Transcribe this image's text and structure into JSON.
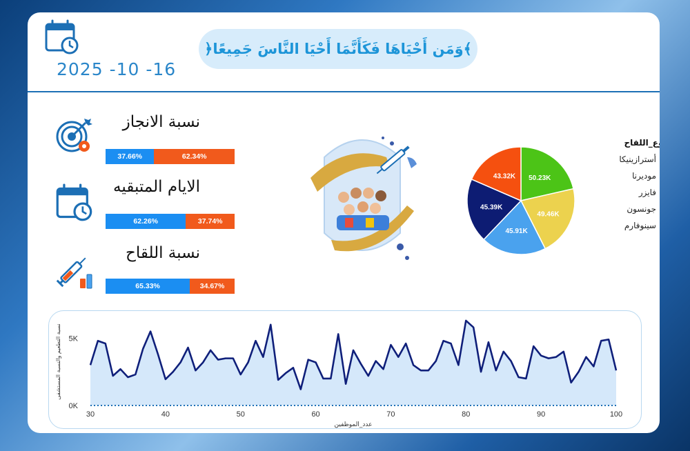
{
  "header": {
    "verse": "﴿وَمَن أَحْيَاهَا فَكَأَنَّمَا أَحْيَا النَّاسَ جَمِيعًا﴾",
    "date": "2025 -10 -16",
    "calendar_icon": "calendar-clock-icon"
  },
  "kpis": [
    {
      "title": "نسبة الانجاز",
      "icon": "target-gear-icon",
      "left_label": "37.66%",
      "right_label": "62.34%",
      "left_value": 37.66,
      "right_value": 62.34
    },
    {
      "title": "الايام المتبقيه",
      "icon": "calendar-clock-icon",
      "left_label": "62.26%",
      "right_label": "37.74%",
      "left_value": 62.26,
      "right_value": 37.74
    },
    {
      "title": "نسبة اللقاح",
      "icon": "syringe-vial-icon",
      "left_label": "65.33%",
      "right_label": "34.67%",
      "left_value": 65.33,
      "right_value": 34.67
    }
  ],
  "colors": {
    "bar_blue": "#1b8ef2",
    "bar_orange": "#f15a1c",
    "line": "#0f1f7a",
    "area": "#d5e8fa",
    "accent": "#1c6fb5"
  },
  "hero_icon": "vaccination-people-icon",
  "chart_data": [
    {
      "type": "pie",
      "title": "",
      "legend_title": "نوع_اللقاح",
      "legend_position": "right",
      "slices": [
        {
          "name": "أسترازينيكا",
          "value": 50.23,
          "label": "50.23K",
          "color": "#4cc417"
        },
        {
          "name": "موديرنا",
          "value": 49.46,
          "label": "49.46K",
          "color": "#ecd24e"
        },
        {
          "name": "فايزر",
          "value": 45.91,
          "label": "45.91K",
          "color": "#4aa2ee"
        },
        {
          "name": "جونسون",
          "value": 45.39,
          "label": "45.39K",
          "color": "#0d1c73"
        },
        {
          "name": "سينوفارم",
          "value": 43.32,
          "label": "43.32K",
          "color": "#f5500f"
        }
      ]
    },
    {
      "type": "area",
      "xlabel": "عدد_الموظفين",
      "ylabel": "نسبة التطعيم والنسبة المستشفى",
      "xlim": [
        30,
        100
      ],
      "ylim": [
        0,
        6500
      ],
      "x_ticks": [
        30,
        40,
        50,
        60,
        70,
        80,
        90,
        100
      ],
      "y_ticks": [
        {
          "value": 0,
          "label": "0K"
        },
        {
          "value": 5000,
          "label": "5K"
        }
      ],
      "grid": false,
      "series": [
        {
          "x": [
            30,
            31,
            32,
            33,
            34,
            35,
            36,
            37,
            38,
            39,
            40,
            41,
            42,
            43,
            44,
            45,
            46,
            47,
            48,
            49,
            50,
            51,
            52,
            53,
            54,
            55,
            56,
            57,
            58,
            59,
            60,
            61,
            62,
            63,
            64,
            65,
            66,
            67,
            68,
            69,
            70,
            71,
            72,
            73,
            74,
            75,
            76,
            77,
            78,
            79,
            80,
            81,
            82,
            83,
            84,
            85,
            86,
            87,
            88,
            89,
            90,
            91,
            92,
            93,
            94,
            95,
            96,
            97,
            98,
            99,
            100
          ],
          "values": [
            3000,
            4800,
            4600,
            2200,
            2700,
            2100,
            2300,
            4200,
            5500,
            3800,
            1950,
            2500,
            3200,
            4300,
            2600,
            3200,
            4100,
            3400,
            3500,
            3500,
            2300,
            3200,
            4800,
            3600,
            6000,
            1900,
            2400,
            2800,
            1200,
            3400,
            3200,
            2000,
            2000,
            5300,
            1600,
            4100,
            3100,
            2200,
            3300,
            2700,
            4500,
            3600,
            4600,
            3000,
            2600,
            2600,
            3300,
            4800,
            4600,
            3000,
            6300,
            5800,
            2500,
            4700,
            2600,
            4000,
            3300,
            2100,
            2000,
            4400,
            3700,
            3500,
            3600,
            4000,
            1700,
            2500,
            3600,
            2900,
            4800,
            4900,
            2600
          ]
        }
      ]
    }
  ]
}
